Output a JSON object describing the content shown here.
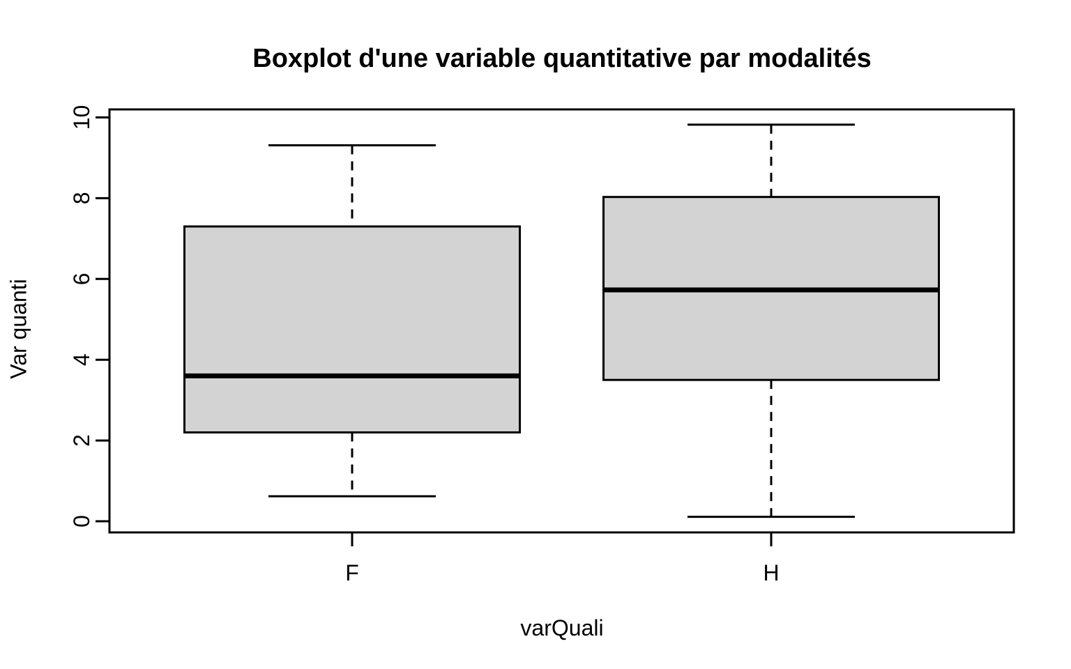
{
  "figure": {
    "background": "#ffffff"
  },
  "chart_data": {
    "type": "boxplot",
    "title": "Boxplot d'une variable quantitative par modalités",
    "xlabel": "varQuali",
    "ylabel": "Var quanti",
    "categories": [
      "F",
      "H"
    ],
    "ylim": [
      0,
      10
    ],
    "yticks": [
      0,
      2,
      4,
      6,
      8,
      10
    ],
    "grid": false,
    "legend": "none",
    "orientation": "vertical",
    "series": [
      {
        "name": "F",
        "whisker_low": 0.62,
        "q1": 2.2,
        "median": 3.6,
        "q3": 7.3,
        "whisker_high": 9.31,
        "outliers": []
      },
      {
        "name": "H",
        "whisker_low": 0.11,
        "q1": 3.5,
        "median": 5.73,
        "q3": 8.03,
        "whisker_high": 9.82,
        "outliers": []
      }
    ],
    "colors": {
      "box_fill": "#d3d3d3",
      "line": "#000000",
      "text": "#000000",
      "background": "#ffffff"
    }
  }
}
